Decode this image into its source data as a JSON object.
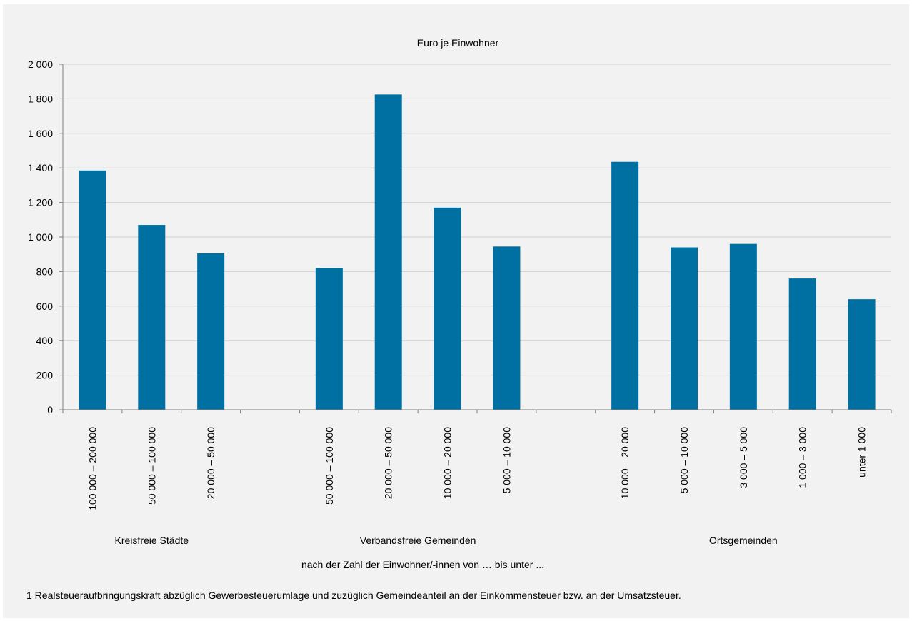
{
  "chart_data": {
    "type": "bar",
    "title": "Euro je Einwohner",
    "xlabel": "nach der Zahl der Einwohner/-innen von … bis unter ...",
    "ylabel": "",
    "ylim": [
      0,
      2000
    ],
    "yticks": [
      0,
      200,
      400,
      600,
      800,
      1000,
      1200,
      1400,
      1600,
      1800,
      2000
    ],
    "ytick_labels": [
      "0",
      "200",
      "400",
      "600",
      "800",
      "1 000",
      "1 200",
      "1 400",
      "1 600",
      "1 800",
      "2 000"
    ],
    "grid": true,
    "bar_color": "#0070a3",
    "grid_color": "#d0d0d0",
    "categories": [
      "100 000 – 200 000",
      "50 000 – 100 000",
      "20 000 – 50 000",
      "",
      "50 000 – 100 000",
      "20 000 – 50 000",
      "10 000 – 20 000",
      "5 000 – 10 000",
      "",
      "10 000 – 20 000",
      "5 000 – 10 000",
      "3 000 – 5 000",
      "1 000 – 3 000",
      "unter 1 000"
    ],
    "values": [
      1385,
      1070,
      905,
      null,
      820,
      1825,
      1170,
      945,
      null,
      1435,
      940,
      960,
      760,
      640
    ],
    "groups": [
      {
        "label": "Kreisfreie Städte",
        "start": 0,
        "end": 2
      },
      {
        "label": "Verbandsfreie Gemeinden",
        "start": 4,
        "end": 7
      },
      {
        "label": "Ortsgemeinden",
        "start": 9,
        "end": 13
      }
    ]
  },
  "footnote": "1 Realsteueraufbringungskraft abzüglich Gewerbesteuerumlage und zuzüglich Gemeindeanteil an der Einkommensteuer bzw. an der Umsatzsteuer."
}
